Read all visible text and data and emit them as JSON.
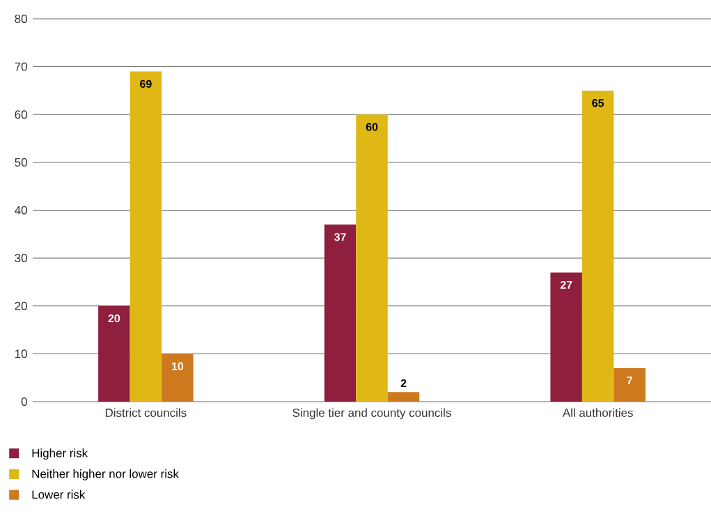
{
  "chart_data": {
    "type": "bar",
    "categories": [
      "District councils",
      "Single tier and county councils",
      "All authorities"
    ],
    "series": [
      {
        "name": "Higher risk",
        "color": "#8e1f3d",
        "values": [
          20,
          37,
          27
        ]
      },
      {
        "name": "Neither higher nor lower risk",
        "color": "#e0b816",
        "values": [
          69,
          60,
          65
        ]
      },
      {
        "name": "Lower risk",
        "color": "#cd7a1f",
        "values": [
          10,
          2,
          7
        ]
      }
    ],
    "ylim": [
      0,
      80
    ],
    "yticks": [
      0,
      10,
      20,
      30,
      40,
      50,
      60,
      70,
      80
    ],
    "grid": "y",
    "legend": "bottom left",
    "data_labels": true
  }
}
